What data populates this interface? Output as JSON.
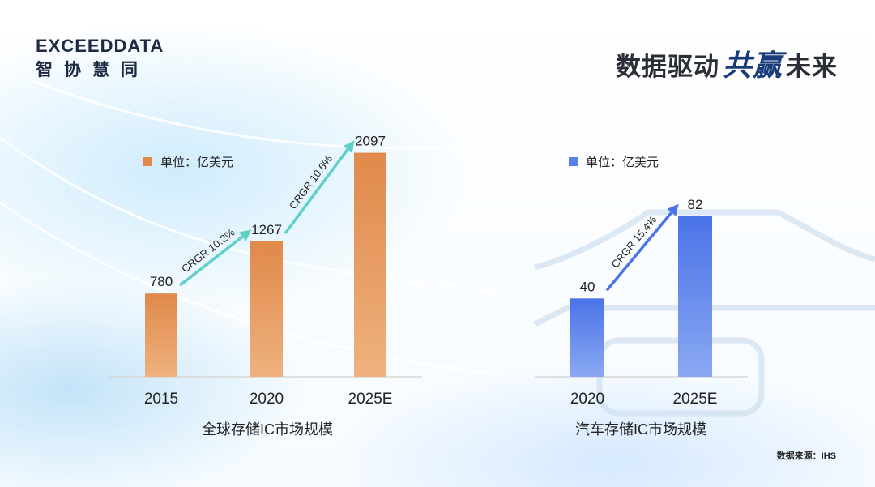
{
  "header": {
    "logo_en": "EXCEEDDATA",
    "logo_cn": "智协慧同",
    "slogan_before": "数据驱动",
    "slogan_highlight": "共赢",
    "slogan_after": "未来"
  },
  "source_note": "数据来源：IHS",
  "chart_data": [
    {
      "type": "bar",
      "title": "",
      "xlabel": "全球存储IC市场规模",
      "ylabel": "",
      "legend": "单位：亿美元",
      "legend_position": "top-left",
      "categories": [
        "2015",
        "2020",
        "2025E"
      ],
      "values": [
        780,
        1267,
        2097
      ],
      "ylim": [
        0,
        2200
      ],
      "grid": false,
      "color": "#e0894a",
      "annotations": [
        {
          "label": "CRGR 10.2%",
          "from": "2015",
          "to": "2020"
        },
        {
          "label": "CRGR 10.6%",
          "from": "2020",
          "to": "2025E"
        }
      ],
      "arrow_color": "#5fd0c8"
    },
    {
      "type": "bar",
      "title": "",
      "xlabel": "汽车存储IC市场规模",
      "ylabel": "",
      "legend": "单位：亿美元",
      "legend_position": "top-left",
      "categories": [
        "2020",
        "2025E"
      ],
      "values": [
        40,
        82
      ],
      "ylim": [
        0,
        120
      ],
      "grid": false,
      "color": "#5580ee",
      "annotations": [
        {
          "label": "CRGR 15.4%",
          "from": "2020",
          "to": "2025E"
        }
      ],
      "arrow_color": "#4a73e8"
    }
  ]
}
